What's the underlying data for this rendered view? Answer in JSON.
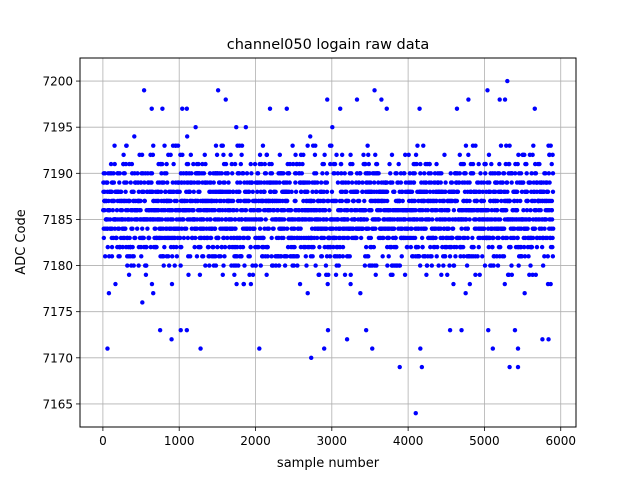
{
  "chart_data": {
    "type": "scatter",
    "title": "channel050 logain raw data",
    "xlabel": "sample number",
    "ylabel": "ADC Code",
    "xlim": [
      -300,
      6200
    ],
    "ylim": [
      7162.5,
      7202.5
    ],
    "xticks": [
      0,
      1000,
      2000,
      3000,
      4000,
      5000,
      6000
    ],
    "yticks": [
      7165,
      7170,
      7175,
      7180,
      7185,
      7190,
      7195,
      7200
    ],
    "xtick_labels": [
      "0",
      "1000",
      "2000",
      "3000",
      "4000",
      "5000",
      "6000"
    ],
    "ytick_labels": [
      "7165",
      "7170",
      "7175",
      "7180",
      "7185",
      "7190",
      "7195",
      "7200"
    ],
    "grid": true,
    "marker_color": "#0000ff",
    "n_samples": 5900,
    "dense_band": [
      7176,
      7195
    ],
    "outliers": [
      {
        "x": 540,
        "y": 7199
      },
      {
        "x": 1510,
        "y": 7199
      },
      {
        "x": 3560,
        "y": 7199
      },
      {
        "x": 5040,
        "y": 7199
      },
      {
        "x": 5300,
        "y": 7200
      },
      {
        "x": 1610,
        "y": 7198
      },
      {
        "x": 2940,
        "y": 7198
      },
      {
        "x": 3330,
        "y": 7198
      },
      {
        "x": 3650,
        "y": 7198
      },
      {
        "x": 4790,
        "y": 7198
      },
      {
        "x": 5200,
        "y": 7198
      },
      {
        "x": 5270,
        "y": 7198
      },
      {
        "x": 640,
        "y": 7197
      },
      {
        "x": 780,
        "y": 7197
      },
      {
        "x": 1040,
        "y": 7197
      },
      {
        "x": 1100,
        "y": 7197
      },
      {
        "x": 2190,
        "y": 7197
      },
      {
        "x": 2410,
        "y": 7197
      },
      {
        "x": 3110,
        "y": 7197
      },
      {
        "x": 3720,
        "y": 7197
      },
      {
        "x": 4150,
        "y": 7197
      },
      {
        "x": 4640,
        "y": 7197
      },
      {
        "x": 5660,
        "y": 7197
      },
      {
        "x": 60,
        "y": 7171
      },
      {
        "x": 1280,
        "y": 7171
      },
      {
        "x": 2050,
        "y": 7171
      },
      {
        "x": 2900,
        "y": 7171
      },
      {
        "x": 3530,
        "y": 7171
      },
      {
        "x": 4160,
        "y": 7171
      },
      {
        "x": 5110,
        "y": 7171
      },
      {
        "x": 5440,
        "y": 7171
      },
      {
        "x": 2730,
        "y": 7170
      },
      {
        "x": 3890,
        "y": 7169
      },
      {
        "x": 4180,
        "y": 7169
      },
      {
        "x": 5330,
        "y": 7169
      },
      {
        "x": 5440,
        "y": 7169
      },
      {
        "x": 4100,
        "y": 7164
      },
      {
        "x": 750,
        "y": 7173
      },
      {
        "x": 1020,
        "y": 7173
      },
      {
        "x": 1100,
        "y": 7173
      },
      {
        "x": 2950,
        "y": 7173
      },
      {
        "x": 3450,
        "y": 7173
      },
      {
        "x": 4550,
        "y": 7173
      },
      {
        "x": 4700,
        "y": 7173
      },
      {
        "x": 5050,
        "y": 7173
      },
      {
        "x": 5400,
        "y": 7173
      },
      {
        "x": 900,
        "y": 7172
      },
      {
        "x": 3200,
        "y": 7172
      },
      {
        "x": 5760,
        "y": 7172
      },
      {
        "x": 5840,
        "y": 7172
      }
    ]
  }
}
